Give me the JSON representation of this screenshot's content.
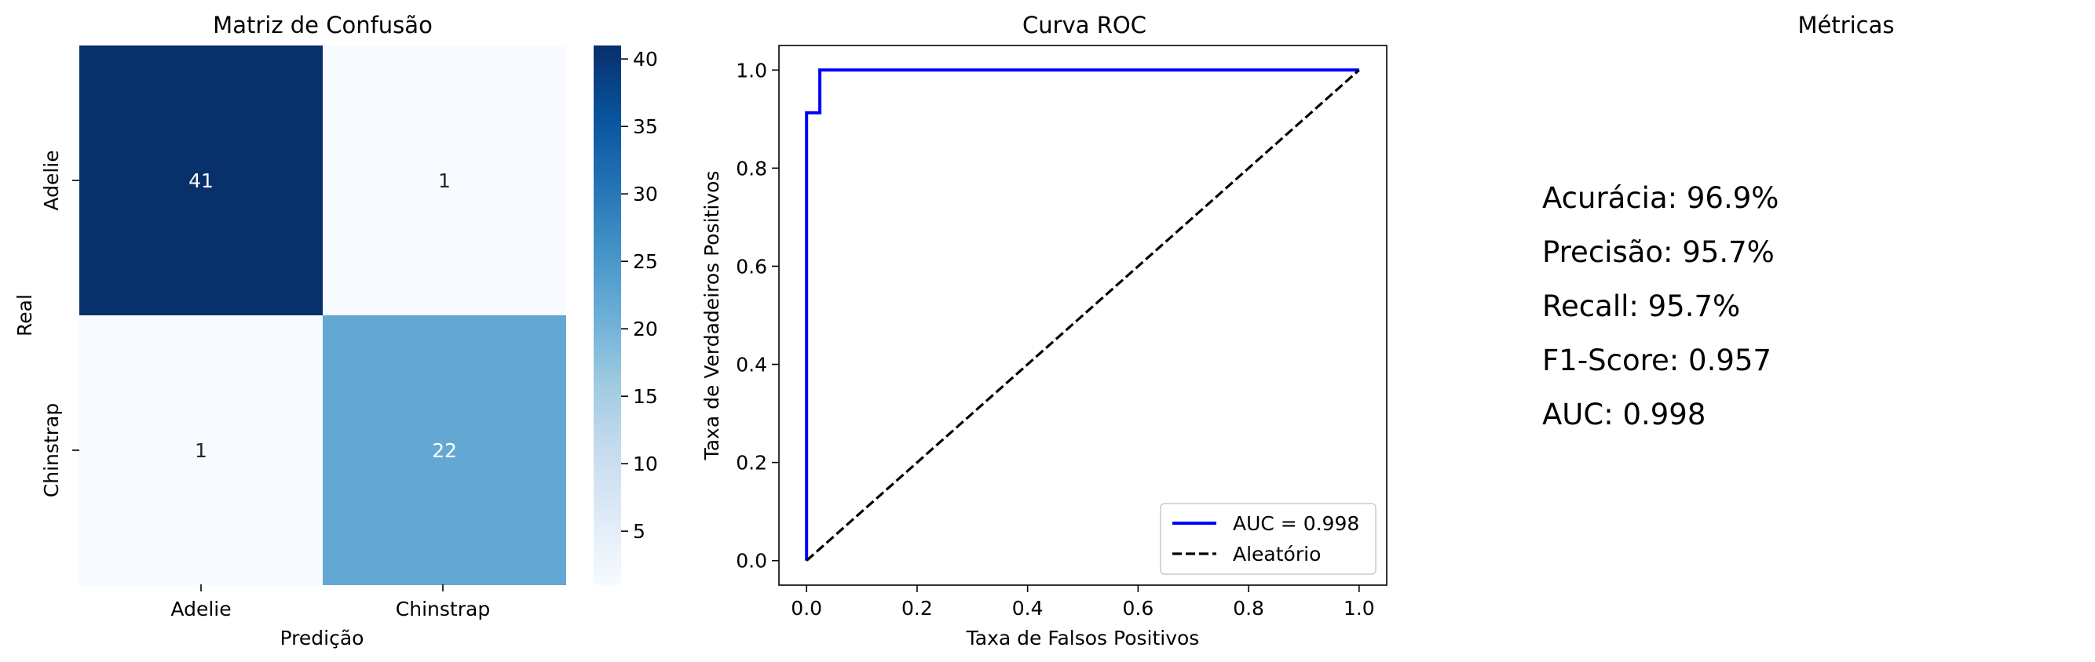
{
  "chart_data": [
    {
      "type": "heatmap",
      "title": "Matriz de Confusão",
      "xlabel": "Predição",
      "ylabel": "Real",
      "x_categories": [
        "Adelie",
        "Chinstrap"
      ],
      "y_categories": [
        "Adelie",
        "Chinstrap"
      ],
      "matrix": [
        [
          41,
          1
        ],
        [
          1,
          22
        ]
      ],
      "annotations": [
        "41",
        "1",
        "1",
        "22"
      ],
      "colormap": "Blues",
      "colorbar": {
        "min": 1,
        "max": 41,
        "ticks": [
          5,
          10,
          15,
          20,
          25,
          30,
          35,
          40
        ],
        "tick_labels": [
          "5",
          "10",
          "15",
          "20",
          "25",
          "30",
          "35",
          "40"
        ]
      }
    },
    {
      "type": "line",
      "title": "Curva ROC",
      "xlabel": "Taxa de Falsos Positivos",
      "ylabel": "Taxa de Verdadeiros Positivos",
      "xlim": [
        -0.05,
        1.05
      ],
      "ylim": [
        -0.05,
        1.05
      ],
      "xticks": [
        0.0,
        0.2,
        0.4,
        0.6,
        0.8,
        1.0
      ],
      "yticks": [
        0.0,
        0.2,
        0.4,
        0.6,
        0.8,
        1.0
      ],
      "tick_labels": [
        "0.0",
        "0.2",
        "0.4",
        "0.6",
        "0.8",
        "1.0"
      ],
      "series": [
        {
          "name": "AUC = 0.998",
          "color": "#0000ff",
          "dash": "solid",
          "points": [
            [
              0.0,
              0.0
            ],
            [
              0.0,
              0.913
            ],
            [
              0.024,
              0.913
            ],
            [
              0.024,
              1.0
            ],
            [
              1.0,
              1.0
            ]
          ]
        },
        {
          "name": "Aleatório",
          "color": "#000000",
          "dash": "dashed",
          "points": [
            [
              0.0,
              0.0
            ],
            [
              1.0,
              1.0
            ]
          ]
        }
      ],
      "legend": {
        "position": "lower-right",
        "entries": [
          "AUC = 0.998",
          "Aleatório"
        ]
      }
    }
  ],
  "metrics": {
    "title": "Métricas",
    "lines": [
      "Acurácia: 96.9%",
      "Precisão: 95.7%",
      "Recall: 95.7%",
      "F1-Score: 0.957",
      "AUC: 0.998"
    ]
  }
}
